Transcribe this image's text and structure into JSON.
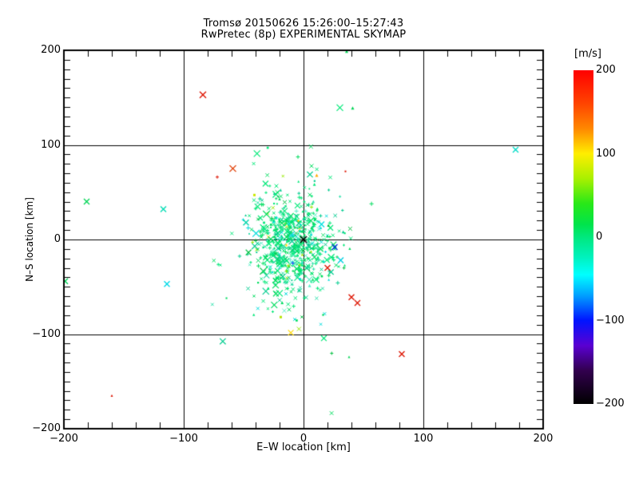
{
  "title": {
    "line1": "Tromsø 20150626 15:26:00–15:27:43",
    "line2": "RwPretec (8p) EXPERIMENTAL SKYMAP"
  },
  "axes": {
    "x": {
      "label": "E–W location [km]",
      "range": [
        -200,
        200
      ],
      "minor_tick_step_km": 20,
      "grid_step_km": 100,
      "ticks": [
        {
          "v": -200,
          "label": "−200"
        },
        {
          "v": -100,
          "label": "−100"
        },
        {
          "v": 0,
          "label": "0"
        },
        {
          "v": 100,
          "label": "100"
        },
        {
          "v": 200,
          "label": "200"
        }
      ]
    },
    "y": {
      "label": "N–S location [km]",
      "range": [
        -200,
        200
      ],
      "minor_tick_step_km": 10,
      "grid_step_km": 100,
      "ticks": [
        {
          "v": 200,
          "label": "200"
        },
        {
          "v": 100,
          "label": "100"
        },
        {
          "v": 0,
          "label": "0"
        },
        {
          "v": -100,
          "label": "−100"
        },
        {
          "v": -200,
          "label": "−200"
        }
      ]
    }
  },
  "colorbar": {
    "label": "[m/s]",
    "range": [
      -200,
      200
    ],
    "ticks": [
      {
        "v": 200,
        "label": "200"
      },
      {
        "v": 100,
        "label": "100"
      },
      {
        "v": 0,
        "label": "0"
      },
      {
        "v": -100,
        "label": "−100"
      },
      {
        "v": -200,
        "label": "−200"
      }
    ],
    "stops": [
      {
        "v": 200,
        "c": "#ff0000"
      },
      {
        "v": 160,
        "c": "#ff4400"
      },
      {
        "v": 130,
        "c": "#ff8800"
      },
      {
        "v": 100,
        "c": "#ffee00"
      },
      {
        "v": 70,
        "c": "#a8f000"
      },
      {
        "v": 40,
        "c": "#28e818"
      },
      {
        "v": 15,
        "c": "#00e44c"
      },
      {
        "v": 0,
        "c": "#00e87e"
      },
      {
        "v": -25,
        "c": "#00f2c0"
      },
      {
        "v": -45,
        "c": "#00ffff"
      },
      {
        "v": -70,
        "c": "#00a0ff"
      },
      {
        "v": -100,
        "c": "#0014ff"
      },
      {
        "v": -130,
        "c": "#5a00d2"
      },
      {
        "v": -160,
        "c": "#32004e"
      },
      {
        "v": -200,
        "c": "#000000"
      }
    ]
  },
  "chart_data": {
    "type": "scatter",
    "title": "Tromsø 20150626 15:26:00–15:27:43",
    "subtitle": "RwPretec (8p) EXPERIMENTAL SKYMAP",
    "xlabel": "E–W location [km]",
    "ylabel": "N–S location [km]",
    "xlim": [
      -200,
      200
    ],
    "ylim": [
      -200,
      200
    ],
    "grid": "on_at_100km",
    "value_unit": "m/s",
    "site_marker": {
      "x": 0,
      "y": 0,
      "c": "#000000",
      "m": "X",
      "s": 4
    },
    "outliers": [
      {
        "x": -84,
        "y": 153,
        "c": "#dd1400",
        "m": "X",
        "s": 4
      },
      {
        "x": 177,
        "y": 95,
        "c": "#00dcc8",
        "m": "X",
        "s": 3.5
      },
      {
        "x": 41,
        "y": 139,
        "c": "#00d455",
        "m": "tri",
        "s": 2
      },
      {
        "x": 36,
        "y": 199,
        "c": "#00d455",
        "m": "tri",
        "s": 2
      },
      {
        "x": -59,
        "y": 75,
        "c": "#e03c00",
        "m": "X",
        "s": 4
      },
      {
        "x": -72,
        "y": 66,
        "c": "#dd1400",
        "m": "+",
        "s": 2
      },
      {
        "x": 35,
        "y": 72,
        "c": "#dd1400",
        "m": "dot",
        "s": 1
      },
      {
        "x": 11,
        "y": 68,
        "c": "#ffaa00",
        "m": "tri",
        "s": 2
      },
      {
        "x": -181,
        "y": 40,
        "c": "#00d455",
        "m": "X",
        "s": 3.5
      },
      {
        "x": -117,
        "y": 32,
        "c": "#00dcb4",
        "m": "X",
        "s": 3.5
      },
      {
        "x": -48,
        "y": 18,
        "c": "#00d4aa",
        "m": "X",
        "s": 3.5
      },
      {
        "x": -199,
        "y": -44,
        "c": "#00d455",
        "m": "X",
        "s": 3.5
      },
      {
        "x": -114,
        "y": -47,
        "c": "#00d8e8",
        "m": "X",
        "s": 3.5
      },
      {
        "x": -160,
        "y": -165,
        "c": "#dd1400",
        "m": "tri",
        "s": 1.5
      },
      {
        "x": 26,
        "y": -8,
        "c": "#0034dd",
        "m": "X",
        "s": 3.5
      },
      {
        "x": -9,
        "y": -25,
        "c": "#2244ff",
        "m": "+",
        "s": 2
      },
      {
        "x": 31,
        "y": -22,
        "c": "#00d0e0",
        "m": "X",
        "s": 3.5
      },
      {
        "x": 20,
        "y": -30,
        "c": "#dd1400",
        "m": "X",
        "s": 3.5
      },
      {
        "x": 40,
        "y": -61,
        "c": "#dd1400",
        "m": "X",
        "s": 3.5
      },
      {
        "x": 45,
        "y": -67,
        "c": "#dd1400",
        "m": "X",
        "s": 3.5
      },
      {
        "x": 82,
        "y": -121,
        "c": "#dd1400",
        "m": "X",
        "s": 3.5
      },
      {
        "x": 38,
        "y": -124,
        "c": "#00d455",
        "m": "tri",
        "s": 1.5
      },
      {
        "x": -19,
        "y": -82,
        "c": "#b4e400",
        "m": "dot",
        "s": 1.5
      },
      {
        "x": -41,
        "y": 47,
        "c": "#c8e800",
        "m": "dot",
        "s": 1.5
      },
      {
        "x": 15,
        "y": 16,
        "c": "#00e0e0",
        "m": "X",
        "s": 3.5
      },
      {
        "x": 13,
        "y": 11,
        "c": "#44e8d0",
        "m": "x",
        "s": 2.5
      }
    ],
    "cluster": {
      "description": "dense echo cluster around radar zenith",
      "count": 680,
      "center_km": [
        -9,
        -5
      ],
      "sigma_km": [
        16,
        27
      ],
      "tail_fraction": 0.12,
      "tail_scale": 2.1,
      "seed": 20150626,
      "colors": [
        [
          "#00e878",
          0.4
        ],
        [
          "#00dd5f",
          0.22
        ],
        [
          "#00cc8f",
          0.14
        ],
        [
          "#2ce0ac",
          0.08
        ],
        [
          "#00dcdc",
          0.06
        ],
        [
          "#58eec8",
          0.04
        ],
        [
          "#00c040",
          0.03
        ],
        [
          "#96e800",
          0.02
        ],
        [
          "#ffd800",
          0.005
        ],
        [
          "#00a8e8",
          0.005
        ]
      ],
      "markers": [
        [
          "x",
          0.4
        ],
        [
          "+",
          0.28
        ],
        [
          "tri",
          0.12
        ],
        [
          "dot",
          0.1
        ],
        [
          "X",
          0.1
        ]
      ]
    }
  }
}
